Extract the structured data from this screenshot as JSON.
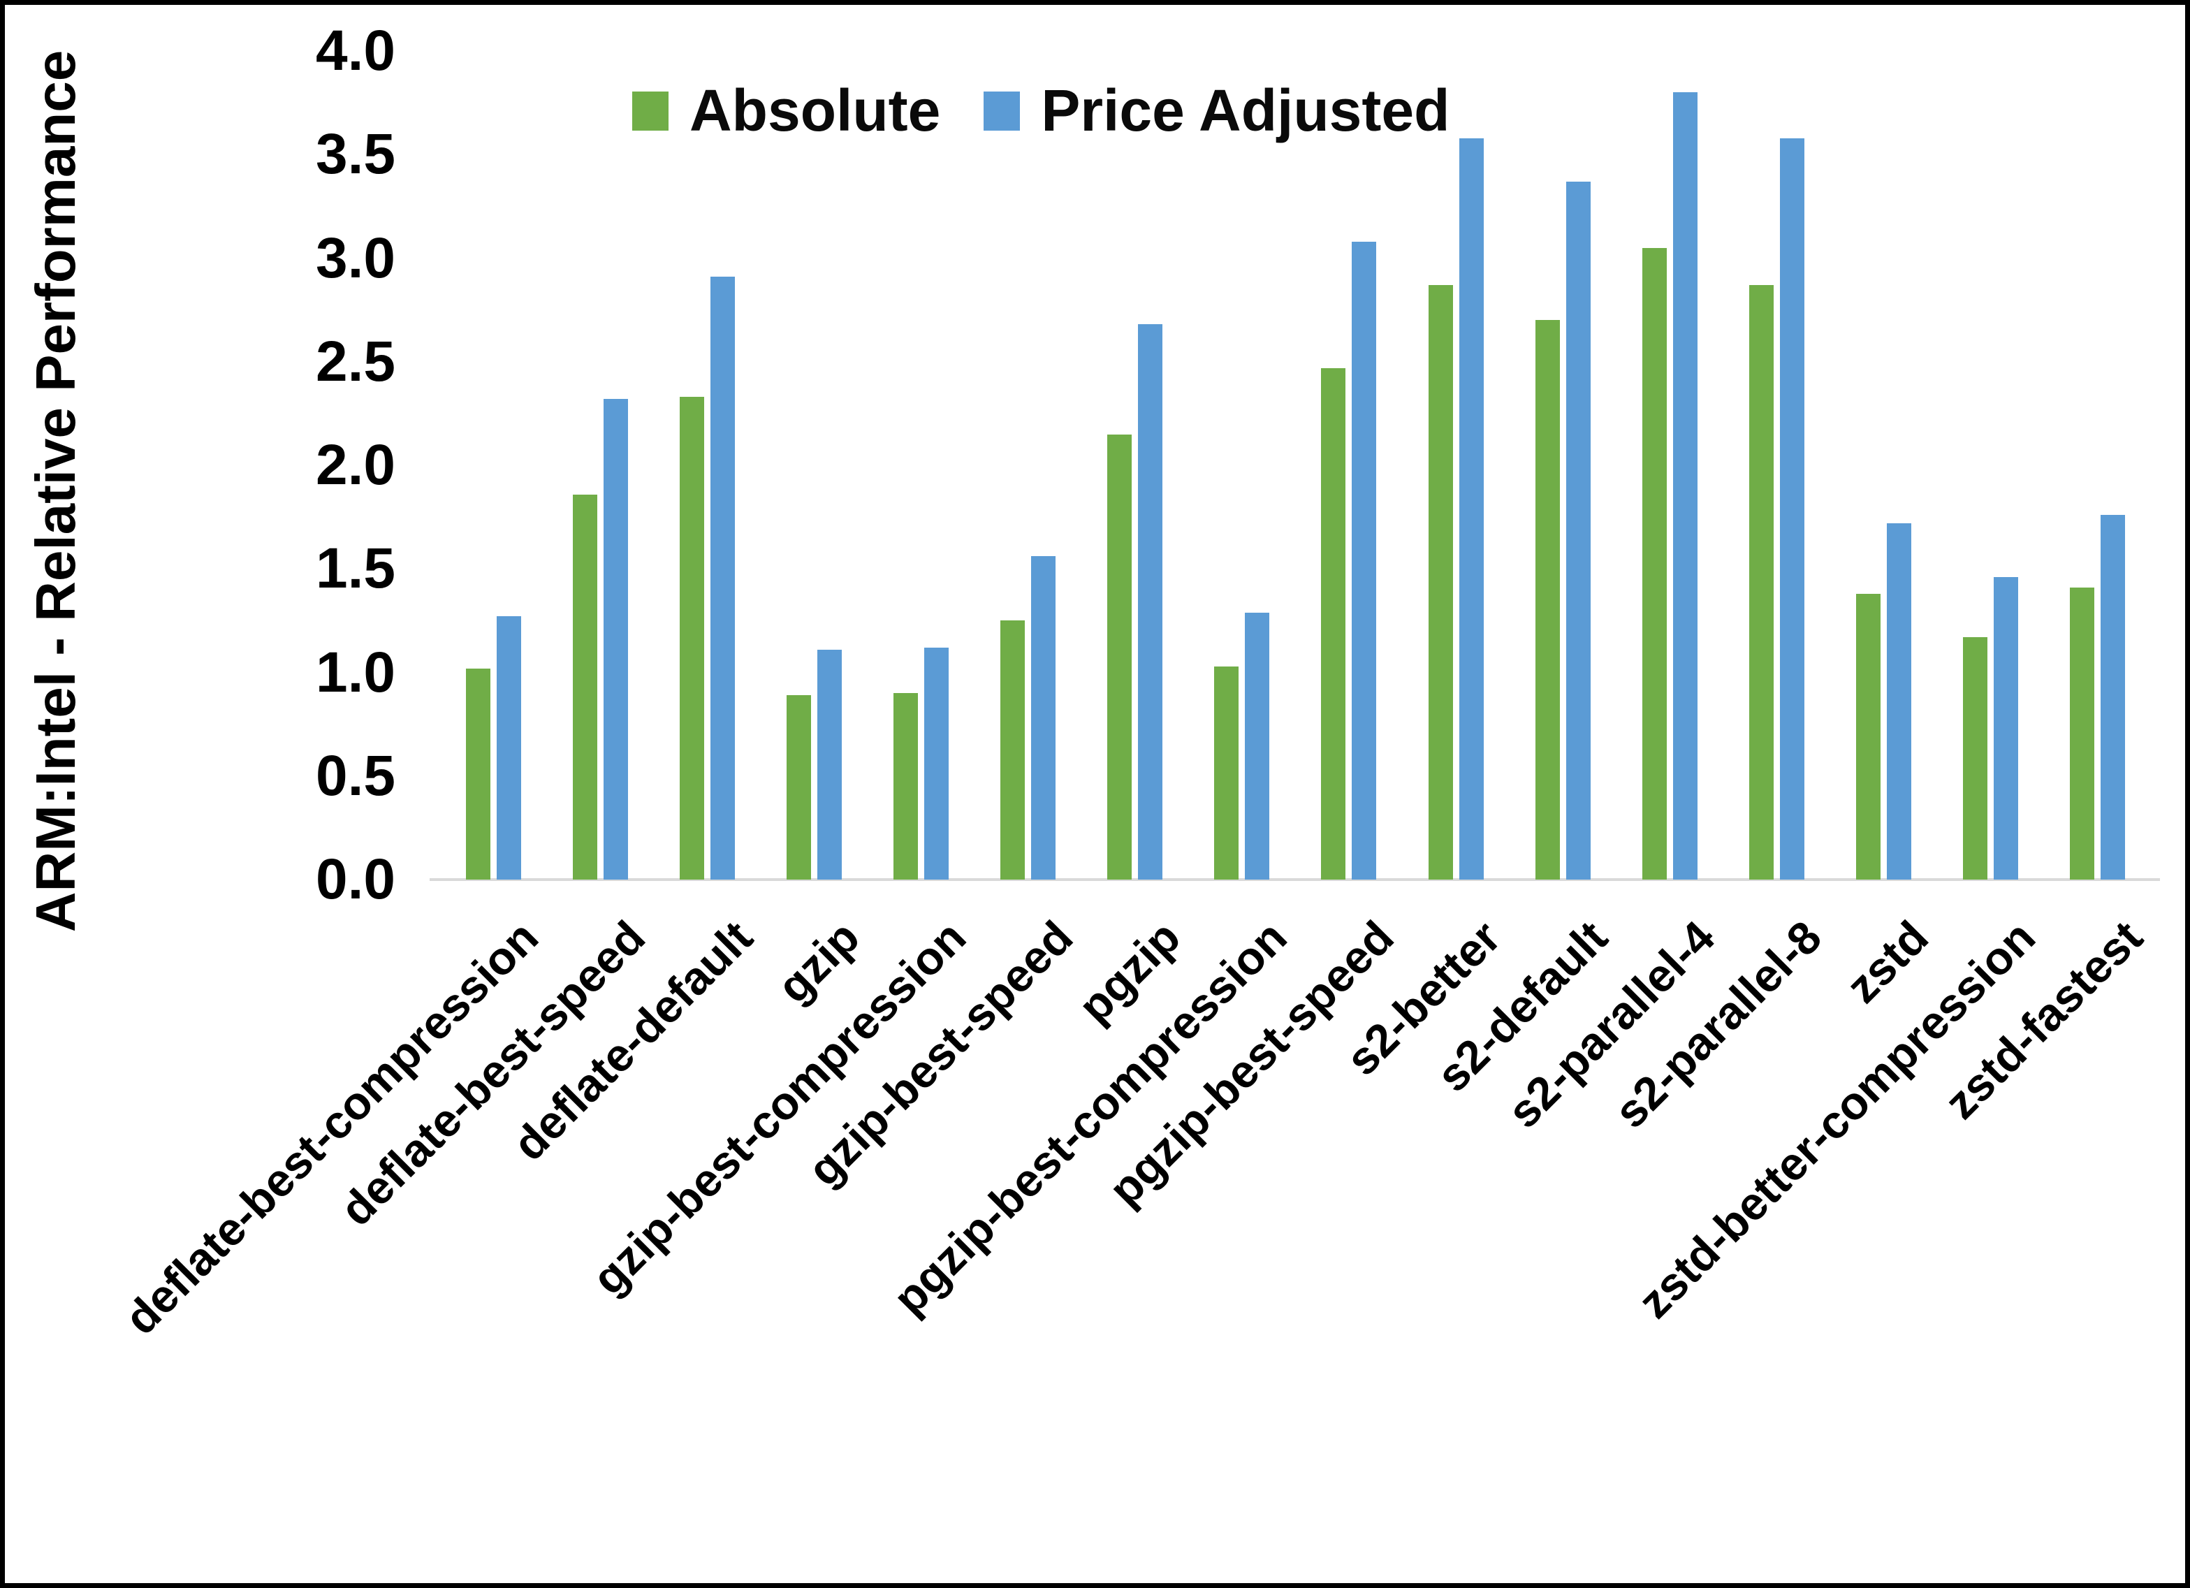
{
  "frame": {
    "background": "#FFFFFF",
    "border_color": "#000000"
  },
  "axis": {
    "line_color": "#D9D9D9",
    "text_color": "#000000"
  },
  "chart_data": {
    "type": "bar",
    "title": "",
    "xlabel": "",
    "ylabel": "ARM:Intel - Relative Performance",
    "ylim": [
      0.0,
      4.0
    ],
    "ytick_step": 0.5,
    "ytick_labels": [
      "0.0",
      "0.5",
      "1.0",
      "1.5",
      "2.0",
      "2.5",
      "3.0",
      "3.5",
      "4.0"
    ],
    "grid": false,
    "legend_position": "top-center",
    "categories": [
      "deflate-best-compression",
      "deflate-best-speed",
      "deflate-default",
      "gzip",
      "gzip-best-compression",
      "gzip-best-speed",
      "pgzip",
      "pgzip-best-compression",
      "pgzip-best-speed",
      "s2-better",
      "s2-default",
      "s2-parallel-4",
      "s2-parallel-8",
      "zstd",
      "zstd-better-compression",
      "zstd-fastest"
    ],
    "series": [
      {
        "name": "Absolute",
        "color": "#70AD47",
        "values": [
          1.02,
          1.86,
          2.33,
          0.89,
          0.9,
          1.25,
          2.15,
          1.03,
          2.47,
          2.87,
          2.7,
          3.05,
          2.87,
          1.38,
          1.17,
          1.41
        ]
      },
      {
        "name": "Price Adjusted",
        "color": "#5B9BD5",
        "values": [
          1.27,
          2.32,
          2.91,
          1.11,
          1.12,
          1.56,
          2.68,
          1.29,
          3.08,
          3.58,
          3.37,
          3.8,
          3.58,
          1.72,
          1.46,
          1.76
        ]
      }
    ]
  }
}
